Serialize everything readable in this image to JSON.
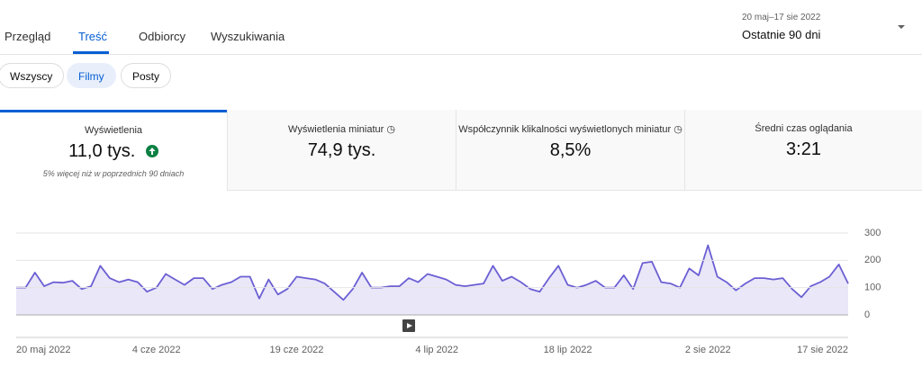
{
  "tabs": [
    "Przegląd",
    "Treść",
    "Odbiorcy",
    "Wyszukiwania"
  ],
  "date_range": {
    "range": "20 maj–17 sie 2022",
    "label": "Ostatnie 90 dni"
  },
  "filters": [
    "Wszyscy",
    "Filmy",
    "Posty"
  ],
  "metrics": [
    {
      "label": "Wyświetlenia",
      "value": "11,0 tys.",
      "note": "5% więcej niż w poprzednich 90 dniach"
    },
    {
      "label": "Wyświetlenia miniatur",
      "value": "74,9 tys."
    },
    {
      "label": "Współczynnik klikalności wyświetlonych miniatur",
      "value": "8,5%"
    },
    {
      "label": "Średni czas oglądania",
      "value": "3:21"
    }
  ],
  "chart_data": {
    "type": "area",
    "color": "#6b5fd3",
    "fill": "#e9e7f8",
    "values": [
      100,
      100,
      155,
      105,
      120,
      118,
      125,
      95,
      105,
      180,
      135,
      120,
      130,
      120,
      85,
      100,
      150,
      130,
      110,
      135,
      135,
      95,
      110,
      120,
      140,
      140,
      60,
      130,
      75,
      95,
      140,
      135,
      130,
      115,
      85,
      55,
      95,
      155,
      100,
      100,
      105,
      105,
      135,
      120,
      150,
      140,
      130,
      110,
      105,
      110,
      115,
      180,
      125,
      140,
      120,
      95,
      85,
      135,
      180,
      110,
      100,
      110,
      125,
      100,
      100,
      145,
      95,
      190,
      195,
      120,
      115,
      100,
      170,
      145,
      255,
      140,
      120,
      90,
      115,
      135,
      135,
      130,
      135,
      95,
      65,
      105,
      120,
      140,
      185,
      115
    ],
    "xticks": [
      {
        "value": 0,
        "label": "20 maj 2022"
      },
      {
        "value": 15,
        "label": "4 cze 2022"
      },
      {
        "value": 30,
        "label": "19 cze 2022"
      },
      {
        "value": 45,
        "label": "4 lip 2022"
      },
      {
        "value": 59,
        "label": "18 lip 2022"
      },
      {
        "value": 74,
        "label": "2 sie 2022"
      },
      {
        "value": 89,
        "label": "17 sie 2022"
      }
    ],
    "xlim": [
      0,
      89
    ],
    "ylim": [
      0,
      300
    ],
    "yticks": [
      0,
      100,
      200,
      300
    ],
    "grid": true
  }
}
